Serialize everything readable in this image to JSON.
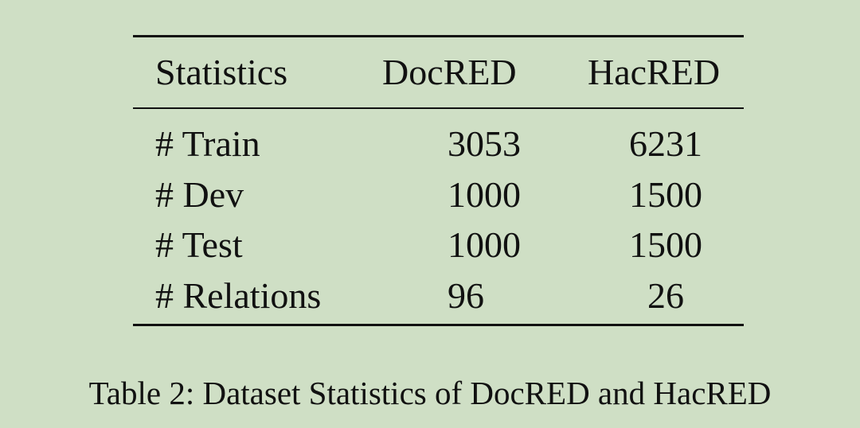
{
  "table": {
    "headers": [
      "Statistics",
      "DocRED",
      "HacRED"
    ],
    "rows": [
      {
        "label": "# Train",
        "docred": "3053",
        "hacred": "6231"
      },
      {
        "label": "# Dev",
        "docred": "1000",
        "hacred": "1500"
      },
      {
        "label": "# Test",
        "docred": "1000",
        "hacred": "1500"
      },
      {
        "label": "# Relations",
        "docred": "96",
        "hacred": "26"
      }
    ]
  },
  "caption": "Table 2: Dataset Statistics of DocRED and HacRED"
}
